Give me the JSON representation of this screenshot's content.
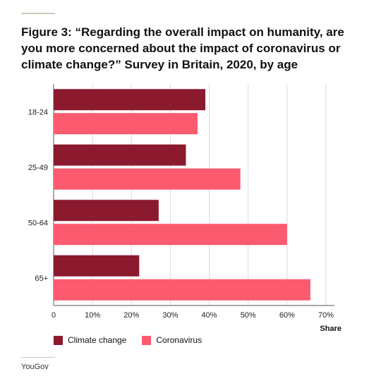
{
  "title": "Figure 3: “Regarding the overall impact on humanity, are you more concerned about the impact of coronavirus or climate change?” Survey in Britain, 2020, by age",
  "source": "YouGov",
  "colors": {
    "climate": "#8b1a2f",
    "corona": "#fc5a6e",
    "grid": "#d9d9d9",
    "axis": "#555555"
  },
  "chart_data": {
    "type": "bar",
    "orientation": "horizontal",
    "categories": [
      "18-24",
      "25-49",
      "50-64",
      "65+"
    ],
    "series": [
      {
        "name": "Climate change",
        "values": [
          39,
          34,
          27,
          22
        ]
      },
      {
        "name": "Coronavirus",
        "values": [
          37,
          48,
          60,
          66
        ]
      }
    ],
    "xlabel": "Share",
    "xlim": [
      0,
      70
    ],
    "xticks": [
      "0",
      "10%",
      "20%",
      "30%",
      "40%",
      "50%",
      "60%",
      "70%"
    ],
    "grid": true,
    "legend": "bottom-left"
  }
}
